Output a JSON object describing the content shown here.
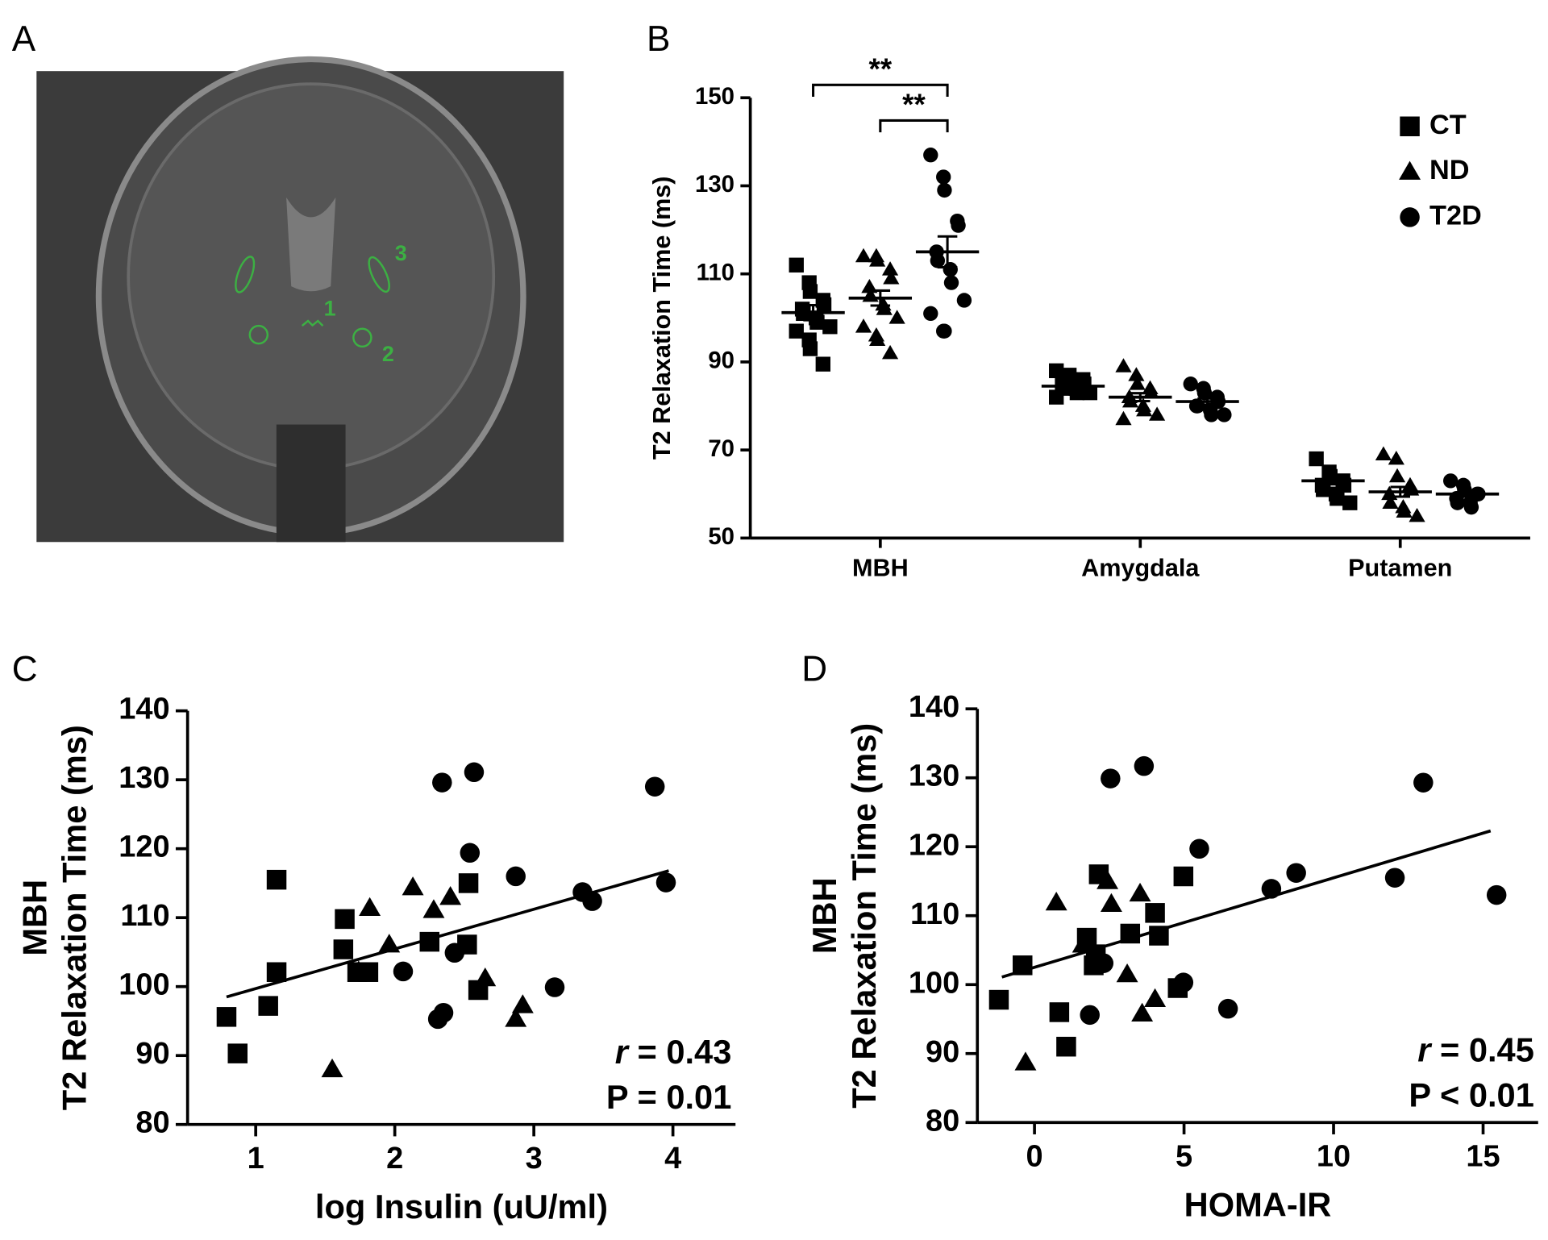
{
  "image_panel": {
    "panel_label": "A",
    "roi_labels": [
      "1",
      "2",
      "3"
    ]
  },
  "chart_data": [
    {
      "type": "strip",
      "panel_label": "B",
      "ylabel": "T2 Relaxation Time (ms)",
      "categories": [
        "MBH",
        "Amygdala",
        "Putamen"
      ],
      "series": [
        {
          "name": "CT",
          "marker": "square",
          "color": "#000000",
          "values": [
            [
              112,
              108,
              106,
              104,
              103,
              102,
              101,
              100,
              99,
              98,
              97,
              95,
              93,
              89.5
            ],
            [
              88,
              87,
              86,
              86,
              85,
              85,
              84,
              84,
              83,
              83,
              82
            ],
            [
              68,
              65,
              64,
              63,
              62,
              62,
              61,
              60,
              59,
              58
            ]
          ],
          "means": [
            101.2,
            84.5,
            63
          ],
          "sem": [
            1.7,
            0.6,
            0.8
          ]
        },
        {
          "name": "ND",
          "marker": "triangle",
          "color": "#000000",
          "values": [
            [
              114,
              114,
              113,
              111,
              109,
              107,
              105,
              103,
              102,
              100,
              98,
              96,
              95,
              92
            ],
            [
              89,
              87,
              85,
              84,
              83,
              82,
              81,
              80,
              79,
              78,
              77
            ],
            [
              69,
              68,
              64,
              62,
              61,
              60,
              58,
              57,
              56,
              55
            ]
          ],
          "means": [
            104.5,
            82,
            60.5
          ],
          "sem": [
            1.7,
            0.9,
            1.1
          ]
        },
        {
          "name": "T2D",
          "marker": "circle",
          "color": "#000000",
          "values": [
            [
              137,
              132,
              129,
              122,
              121,
              115,
              113,
              111,
              108,
              104,
              101,
              97,
              97
            ],
            [
              85,
              84,
              83,
              82,
              81,
              80,
              80,
              79,
              78,
              78
            ],
            [
              63,
              62,
              61,
              60,
              60,
              59,
              58,
              58,
              57
            ]
          ],
          "means": [
            115,
            81,
            60
          ],
          "sem": [
            3.5,
            0.7,
            0.6
          ]
        }
      ],
      "ylim": [
        50,
        150
      ],
      "yticks": [
        50,
        70,
        90,
        110,
        130,
        150
      ],
      "significance": [
        "**",
        "**"
      ],
      "legend": "top-right",
      "grid": false
    },
    {
      "type": "scatter",
      "panel_label": "C",
      "xlabel": "log Insulin (uU/ml)",
      "ylabel": [
        "MBH",
        "T2 Relaxation Time (ms)"
      ],
      "series": [
        {
          "marker": "square",
          "color": "#000000",
          "x": [
            0.79,
            0.87,
            1.09,
            1.15,
            1.15,
            1.64,
            1.63,
            1.73,
            1.81,
            2.25,
            2.53,
            2.52,
            2.6
          ],
          "y": [
            95.6,
            90.3,
            97.2,
            115.5,
            102.1,
            109.8,
            105.4,
            102.1,
            102.1,
            106.5,
            115,
            106.1,
            99.5
          ]
        },
        {
          "marker": "triangle",
          "color": "#000000",
          "x": [
            1.55,
            1.82,
            1.74,
            1.96,
            2.13,
            2.28,
            2.4,
            2.65,
            2.87,
            2.92
          ],
          "y": [
            88,
            111.4,
            102.2,
            106.1,
            114.4,
            111.1,
            113,
            101.2,
            95.3,
            97.3
          ]
        },
        {
          "marker": "circle",
          "color": "#000000",
          "x": [
            2.06,
            2.31,
            2.35,
            2.34,
            2.57,
            2.54,
            2.43,
            2.87,
            3.15,
            3.35,
            3.42,
            3.87,
            3.95
          ],
          "y": [
            102.2,
            95.3,
            96.2,
            129.6,
            131.1,
            119.4,
            104.9,
            116,
            99.9,
            113.7,
            112.4,
            129,
            115.1
          ]
        }
      ],
      "fit": {
        "x": [
          0.79,
          3.97
        ],
        "y": [
          98.5,
          116.8
        ]
      },
      "stats": {
        "r_symbol": "r",
        "r_text": " = 0.43",
        "p_text": "P = 0.01"
      },
      "xlim": [
        0.51,
        4.45
      ],
      "ylim": [
        80,
        140
      ],
      "xticks": [
        1,
        2,
        3,
        4
      ],
      "yticks": [
        80,
        90,
        100,
        110,
        120,
        130,
        140
      ],
      "grid": false
    },
    {
      "type": "scatter",
      "panel_label": "D",
      "xlabel": "HOMA-IR",
      "ylabel": [
        "MBH",
        "T2 Relaxation Time (ms)"
      ],
      "series": [
        {
          "marker": "square",
          "color": "#000000",
          "x": [
            -1.19,
            -0.4,
            0.83,
            1.06,
            2.15,
            1.75,
            1.98,
            3.2,
            4.03,
            4.16,
            4.79,
            4.98,
            2.05
          ],
          "y": [
            97.8,
            102.8,
            96,
            91,
            116,
            106.8,
            102.8,
            107.4,
            110.4,
            107.1,
            99.5,
            115.7,
            104.4
          ]
        },
        {
          "marker": "triangle",
          "color": "#000000",
          "x": [
            -0.3,
            0.73,
            1.62,
            2.44,
            2.57,
            3.53,
            3.1,
            3.6,
            4.03
          ],
          "y": [
            88.7,
            111.9,
            105.8,
            115,
            111.7,
            113.2,
            101.5,
            95.8,
            97.9
          ]
        },
        {
          "marker": "circle",
          "color": "#000000",
          "x": [
            1.85,
            2.31,
            2.54,
            3.66,
            5.51,
            4.98,
            6.47,
            7.92,
            8.75,
            12.05,
            13,
            15.45
          ],
          "y": [
            95.6,
            103.1,
            129.9,
            131.7,
            119.7,
            100.3,
            96.5,
            113.9,
            116.2,
            115.5,
            129.3,
            113
          ]
        }
      ],
      "fit": {
        "x": [
          -1.09,
          15.25
        ],
        "y": [
          101.1,
          122.3
        ]
      },
      "stats": {
        "r_symbol": "r",
        "r_text": " = 0.45",
        "p_text": "P < 0.01"
      },
      "xlim": [
        -1.91,
        16.84
      ],
      "ylim": [
        80,
        140
      ],
      "xticks": [
        0,
        5,
        10,
        15
      ],
      "yticks": [
        80,
        90,
        100,
        110,
        120,
        130,
        140
      ],
      "grid": false
    }
  ]
}
